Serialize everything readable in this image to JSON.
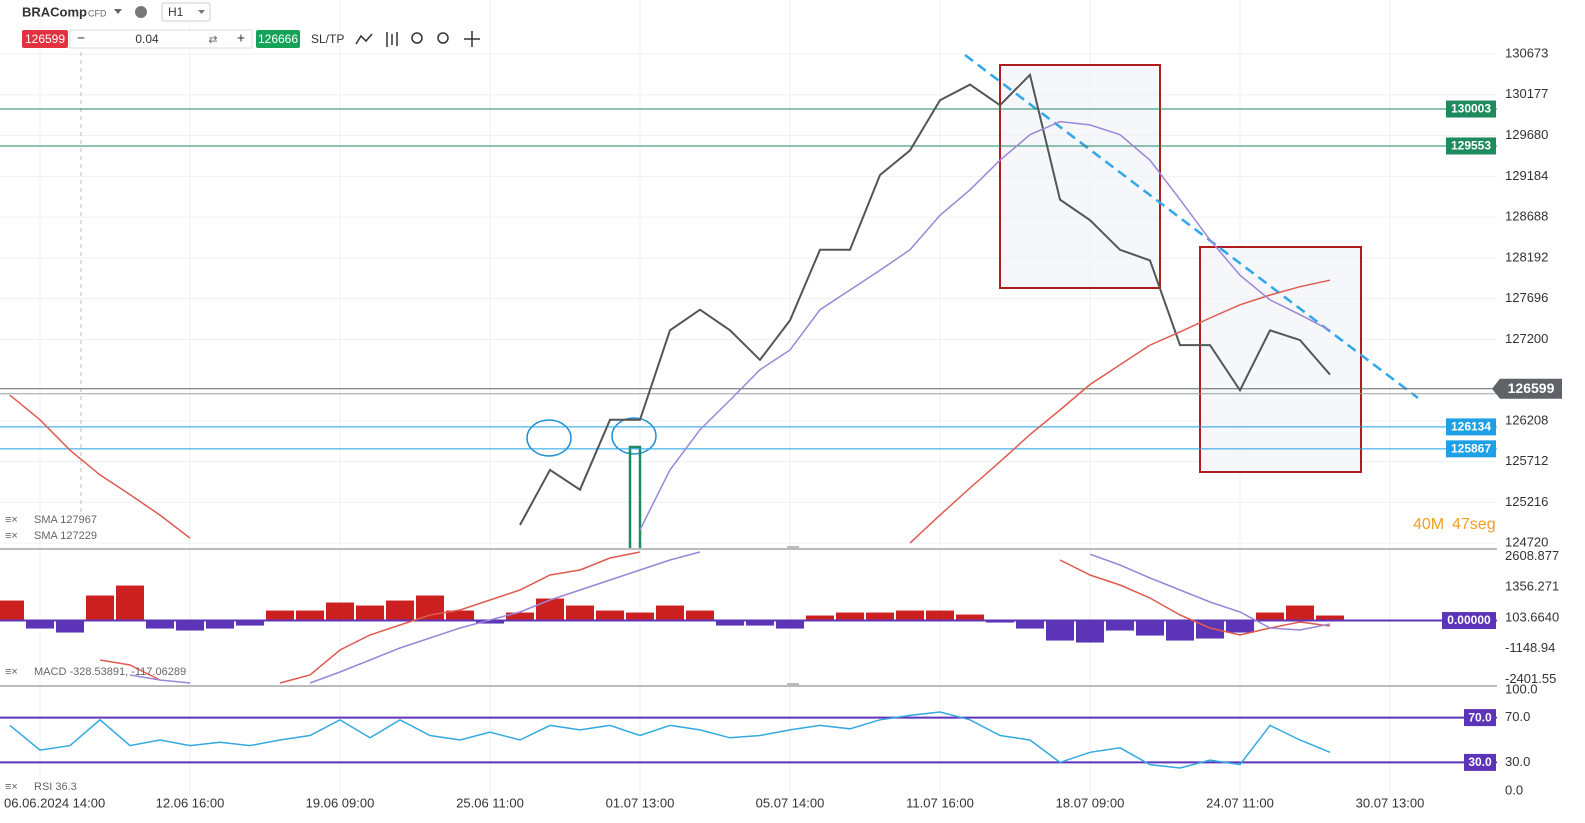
{
  "toolbar": {
    "symbol": "BRAComp",
    "instrument": "CFD",
    "timeframe": "H1",
    "sell": "126599",
    "volume": "0.04",
    "buy": "126666",
    "sltp": "SL/TP"
  },
  "timer": {
    "minutes": "40M",
    "seconds": "47seg"
  },
  "chart_data": [
    {
      "type": "line",
      "ylim": [
        124660,
        131330
      ],
      "yticks": [
        130673,
        130177,
        129680,
        129184,
        128688,
        128192,
        127696,
        127200,
        126208,
        125712,
        125216,
        124720
      ],
      "grid": true,
      "series": [
        {
          "color": "#555555",
          "values": [
            null,
            null,
            null,
            null,
            null,
            null,
            null,
            null,
            null,
            null,
            null,
            null,
            null,
            null,
            null,
            null,
            null,
            124940,
            125610,
            125370,
            126220,
            126220,
            127310,
            127560,
            127310,
            126950,
            127430,
            128290,
            128290,
            129200,
            129500,
            130110,
            130300,
            130050,
            130420,
            128900,
            128650,
            128290,
            128160,
            127130,
            127130,
            126580,
            127310,
            127190,
            126770,
            null,
            null,
            null
          ]
        },
        {
          "name": "SMA 127967",
          "color": "#e05a4f",
          "values": [
            126520,
            126220,
            125850,
            125550,
            125310,
            125060,
            124780,
            null,
            null,
            null,
            null,
            null,
            null,
            null,
            null,
            null,
            null,
            null,
            null,
            null,
            null,
            null,
            null,
            null,
            null,
            null,
            null,
            null,
            null,
            null,
            124720,
            125060,
            125390,
            125710,
            126040,
            126340,
            126650,
            126890,
            127130,
            127290,
            127460,
            127620,
            127740,
            127840,
            127920,
            null,
            null,
            null
          ]
        },
        {
          "name": "SMA 127229",
          "color": "#9b86d8",
          "values": [
            null,
            null,
            null,
            null,
            null,
            null,
            null,
            null,
            null,
            null,
            null,
            null,
            null,
            null,
            null,
            null,
            null,
            null,
            null,
            null,
            null,
            124880,
            125610,
            126100,
            126460,
            126830,
            127070,
            127560,
            127800,
            128040,
            128290,
            128710,
            129020,
            129380,
            129690,
            129850,
            129810,
            129690,
            129380,
            128900,
            128410,
            127980,
            127680,
            127500,
            127310,
            null,
            null,
            null
          ]
        }
      ],
      "levels": [
        {
          "value": 130003,
          "color": "#1f8a5e"
        },
        {
          "value": 129553,
          "color": "#1f8a5e"
        },
        {
          "value": 126134,
          "color": "#1ea0e6"
        },
        {
          "value": 125867,
          "color": "#1ea0e6"
        }
      ],
      "current": {
        "value": 126599,
        "color": "#5f6368"
      }
    },
    {
      "type": "bar",
      "legend": "MACD -328.53891, -117.06289",
      "ylim": [
        -2623,
        2871
      ],
      "yticks": [
        2608.877,
        1356.271,
        {
          "value": 103.664,
          "label": "103.6640"
        },
        -1148.94,
        -2401.55
      ],
      "colors": {
        "positive": "#cc1f1f",
        "negative": "#5b34b8"
      },
      "values": [
        814,
        -326,
        -488,
        1018,
        1425,
        -326,
        -407,
        -326,
        -204,
        407,
        407,
        733,
        611,
        814,
        1018,
        407,
        -122,
        326,
        895,
        611,
        407,
        326,
        611,
        407,
        -204,
        -204,
        -326,
        204,
        326,
        326,
        407,
        407,
        244,
        -81,
        -326,
        -814,
        -895,
        -407,
        -611,
        -814,
        -733,
        -488,
        326,
        611,
        204,
        null,
        null,
        null
      ],
      "series": [
        {
          "color": "#e05a4f",
          "values": [
            null,
            null,
            null,
            -1606,
            -1809,
            -2420,
            null,
            null,
            null,
            -2542,
            -2216,
            -1199,
            -588,
            -181,
            226,
            429,
            836,
            1243,
            1854,
            2057,
            2546,
            2790,
            null,
            null,
            null,
            null,
            null,
            null,
            null,
            null,
            null,
            null,
            null,
            null,
            null,
            2464,
            1854,
            1447,
            918,
            226,
            -303,
            -588,
            -303,
            -59,
            -222,
            null,
            null,
            null
          ]
        },
        {
          "color": "#9b86d8",
          "values": [
            null,
            null,
            null,
            null,
            -2216,
            -2420,
            -2542,
            null,
            null,
            null,
            -2542,
            -2094,
            -1606,
            -1117,
            -710,
            -303,
            22,
            348,
            836,
            1243,
            1650,
            2057,
            2464,
            2790,
            null,
            null,
            null,
            null,
            null,
            null,
            null,
            null,
            null,
            null,
            null,
            null,
            2700,
            2261,
            1732,
            1243,
            755,
            348,
            -303,
            -384,
            -140,
            null,
            null,
            null
          ]
        }
      ],
      "levels": [
        {
          "value": 0,
          "label": "0.00000",
          "color": "#5b34b8"
        }
      ]
    },
    {
      "type": "line",
      "legend": "RSI 36.3",
      "categories": [
        null,
        "06.06.2024 14:00",
        null,
        null,
        null,
        null,
        "12.06 16:00",
        null,
        null,
        null,
        null,
        "19.06 09:00",
        null,
        null,
        null,
        null,
        "25.06 11:00",
        null,
        null,
        null,
        null,
        "01.07 13:00",
        null,
        null,
        null,
        null,
        "05.07 14:00",
        null,
        null,
        null,
        null,
        "11.07 16:00",
        null,
        null,
        null,
        null,
        "18.07 09:00",
        null,
        null,
        null,
        null,
        "24.07 11:00",
        null,
        null,
        null,
        null,
        "30.07 13:00",
        null
      ],
      "ylim": [
        0,
        100
      ],
      "yticks": [
        {
          "value": 100,
          "label": "100.0"
        },
        {
          "value": 70,
          "label": "70.0"
        },
        {
          "value": 30,
          "label": "30.0"
        },
        {
          "value": 0,
          "label": "0.0"
        }
      ],
      "series": [
        {
          "color": "#33a9e0",
          "values": [
            63,
            41,
            45,
            68,
            45,
            50,
            45,
            48,
            45,
            50,
            54,
            68,
            52,
            68,
            54,
            50,
            57,
            50,
            63,
            59,
            63,
            54,
            63,
            59,
            52,
            54,
            59,
            63,
            60,
            68,
            72,
            75,
            68,
            54,
            50,
            30,
            39,
            43,
            28,
            25,
            32,
            28,
            63,
            50,
            39,
            null,
            null,
            null
          ]
        }
      ],
      "levels": [
        {
          "value": 70,
          "label": "70.0",
          "color": "#5b34b8"
        },
        {
          "value": 30,
          "label": "30.0",
          "color": "#5b34b8"
        }
      ]
    }
  ]
}
